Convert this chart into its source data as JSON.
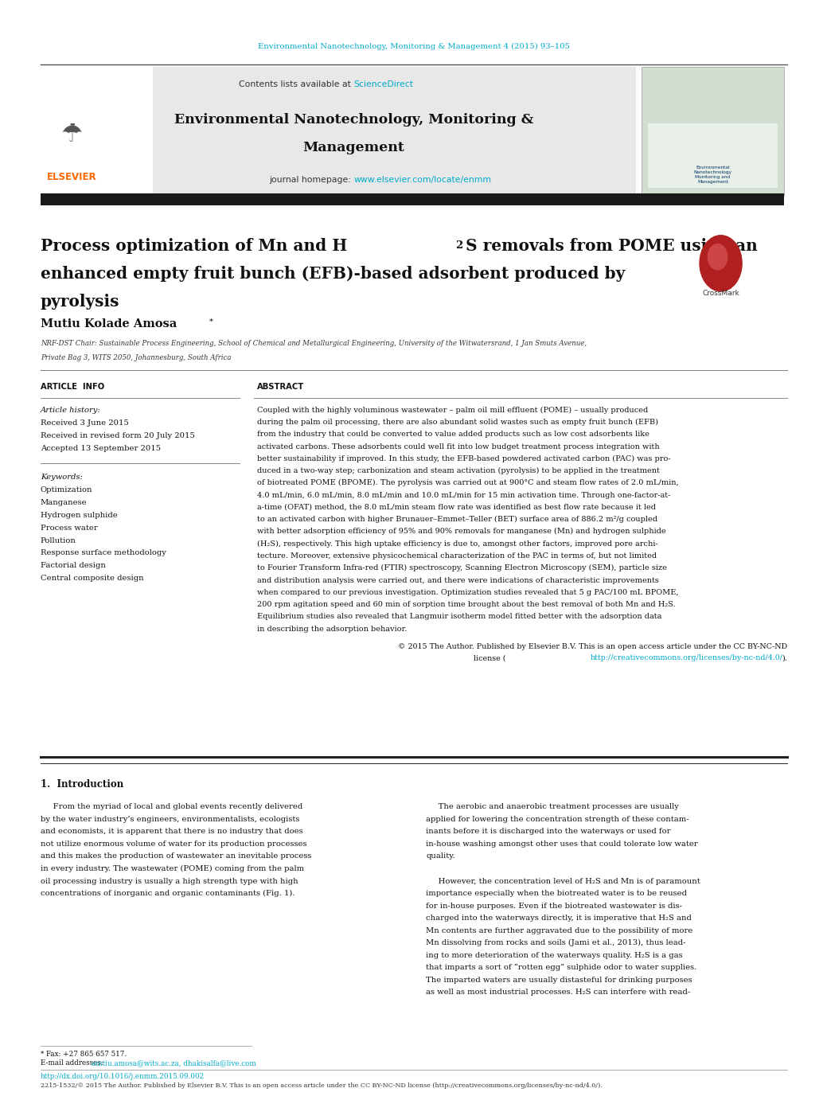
{
  "page_width": 10.2,
  "page_height": 13.51,
  "bg_color": "#ffffff",
  "top_journal_ref": "Environmental Nanotechnology, Monitoring & Management 4 (2015) 93–105",
  "top_ref_color": "#00aacc",
  "header_bg": "#e8e8e8",
  "contents_text": "Contents lists available at ",
  "sciencedirect_text": "ScienceDirect",
  "sciencedirect_color": "#00aacc",
  "journal_homepage_text": "journal homepage: ",
  "journal_url": "www.elsevier.com/locate/enmm",
  "journal_url_color": "#00aacc",
  "elsevier_color": "#ff6600",
  "elsevier_text": "ELSEVIER",
  "dark_bar_color": "#1a1a1a",
  "author_name": "Mutiu Kolade Amosa",
  "author_footnote": "*",
  "article_info_title": "ARTICLE  INFO",
  "abstract_title": "ABSTRACT",
  "article_history_label": "Article history:",
  "received": "Received 3 June 2015",
  "revised": "Received in revised form 20 July 2015",
  "accepted": "Accepted 13 September 2015",
  "keywords_label": "Keywords:",
  "keywords": [
    "Optimization",
    "Manganese",
    "Hydrogen sulphide",
    "Process water",
    "Pollution",
    "Response surface methodology",
    "Factorial design",
    "Central composite design"
  ],
  "abstract_lines": [
    "Coupled with the highly voluminous wastewater – palm oil mill effluent (POME) – usually produced",
    "during the palm oil processing, there are also abundant solid wastes such as empty fruit bunch (EFB)",
    "from the industry that could be converted to value added products such as low cost adsorbents like",
    "activated carbons. These adsorbents could well fit into low budget treatment process integration with",
    "better sustainability if improved. In this study, the EFB-based powdered activated carbon (PAC) was pro-",
    "duced in a two-way step; carbonization and steam activation (pyrolysis) to be applied in the treatment",
    "of biotreated POME (BPOME). The pyrolysis was carried out at 900°C and steam flow rates of 2.0 mL/min,",
    "4.0 mL/min, 6.0 mL/min, 8.0 mL/min and 10.0 mL/min for 15 min activation time. Through one-factor-at-",
    "a-time (OFAT) method, the 8.0 mL/min steam flow rate was identified as best flow rate because it led",
    "to an activated carbon with higher Brunauer–Emmet–Teller (BET) surface area of 886.2 m²/g coupled",
    "with better adsorption efficiency of 95% and 90% removals for manganese (Mn) and hydrogen sulphide",
    "(H₂S), respectively. This high uptake efficiency is due to, amongst other factors, improved pore archi-",
    "tecture. Moreover, extensive physicochemical characterization of the PAC in terms of, but not limited",
    "to Fourier Transform Infra-red (FTIR) spectroscopy, Scanning Electron Microscopy (SEM), particle size",
    "and distribution analysis were carried out, and there were indications of characteristic improvements",
    "when compared to our previous investigation. Optimization studies revealed that 5 g PAC/100 mL BPOME,",
    "200 rpm agitation speed and 60 min of sorption time brought about the best removal of both Mn and H₂S.",
    "Equilibrium studies also revealed that Langmuir isotherm model fitted better with the adsorption data",
    "in describing the adsorption behavior."
  ],
  "copyright_line1": "© 2015 The Author. Published by Elsevier B.V. This is an open access article under the CC BY-NC-ND",
  "copyright_line2_pre": "license (",
  "copyright_line2_url": "http://creativecommons.org/licenses/by-nc-nd/4.0/",
  "copyright_line2_post": ").",
  "intro_heading": "1.  Introduction",
  "intro_left_lines": [
    "     From the myriad of local and global events recently delivered",
    "by the water industry’s engineers, environmentalists, ecologists",
    "and economists, it is apparent that there is no industry that does",
    "not utilize enormous volume of water for its production processes",
    "and this makes the production of wastewater an inevitable process",
    "in every industry. The wastewater (POME) coming from the palm",
    "oil processing industry is usually a high strength type with high",
    "concentrations of inorganic and organic contaminants (Fig. 1)."
  ],
  "intro_right_lines": [
    "     The aerobic and anaerobic treatment processes are usually",
    "applied for lowering the concentration strength of these contam-",
    "inants before it is discharged into the waterways or used for",
    "in-house washing amongst other uses that could tolerate low water",
    "quality.",
    "",
    "     However, the concentration level of H₂S and Mn is of paramount",
    "importance especially when the biotreated water is to be reused",
    "for in-house purposes. Even if the biotreated wastewater is dis-",
    "charged into the waterways directly, it is imperative that H₂S and",
    "Mn contents are further aggravated due to the possibility of more",
    "Mn dissolving from rocks and soils (Jami et al., 2013), thus lead-",
    "ing to more deterioration of the waterways quality. H₂S is a gas",
    "that imparts a sort of “rotten egg” sulphide odor to water supplies.",
    "The imparted waters are usually distasteful for drinking purposes",
    "as well as most industrial processes. H₂S can interfere with read-"
  ],
  "footer_footnote": "* Fax: +27 865 657 517.",
  "footer_email_label": "E-mail addresses: ",
  "footer_emails": "amtiu.amosa@wits.ac.za, dhakisalfa@live.com",
  "footer_doi": "http://dx.doi.org/10.1016/j.enmm.2015.09.002",
  "footer_issn": "2215-1532/© 2015 The Author. Published by Elsevier B.V. This is an open access article under the CC BY-NC-ND license (http://creativecommons.org/licenses/by-nc-nd/4.0/)."
}
